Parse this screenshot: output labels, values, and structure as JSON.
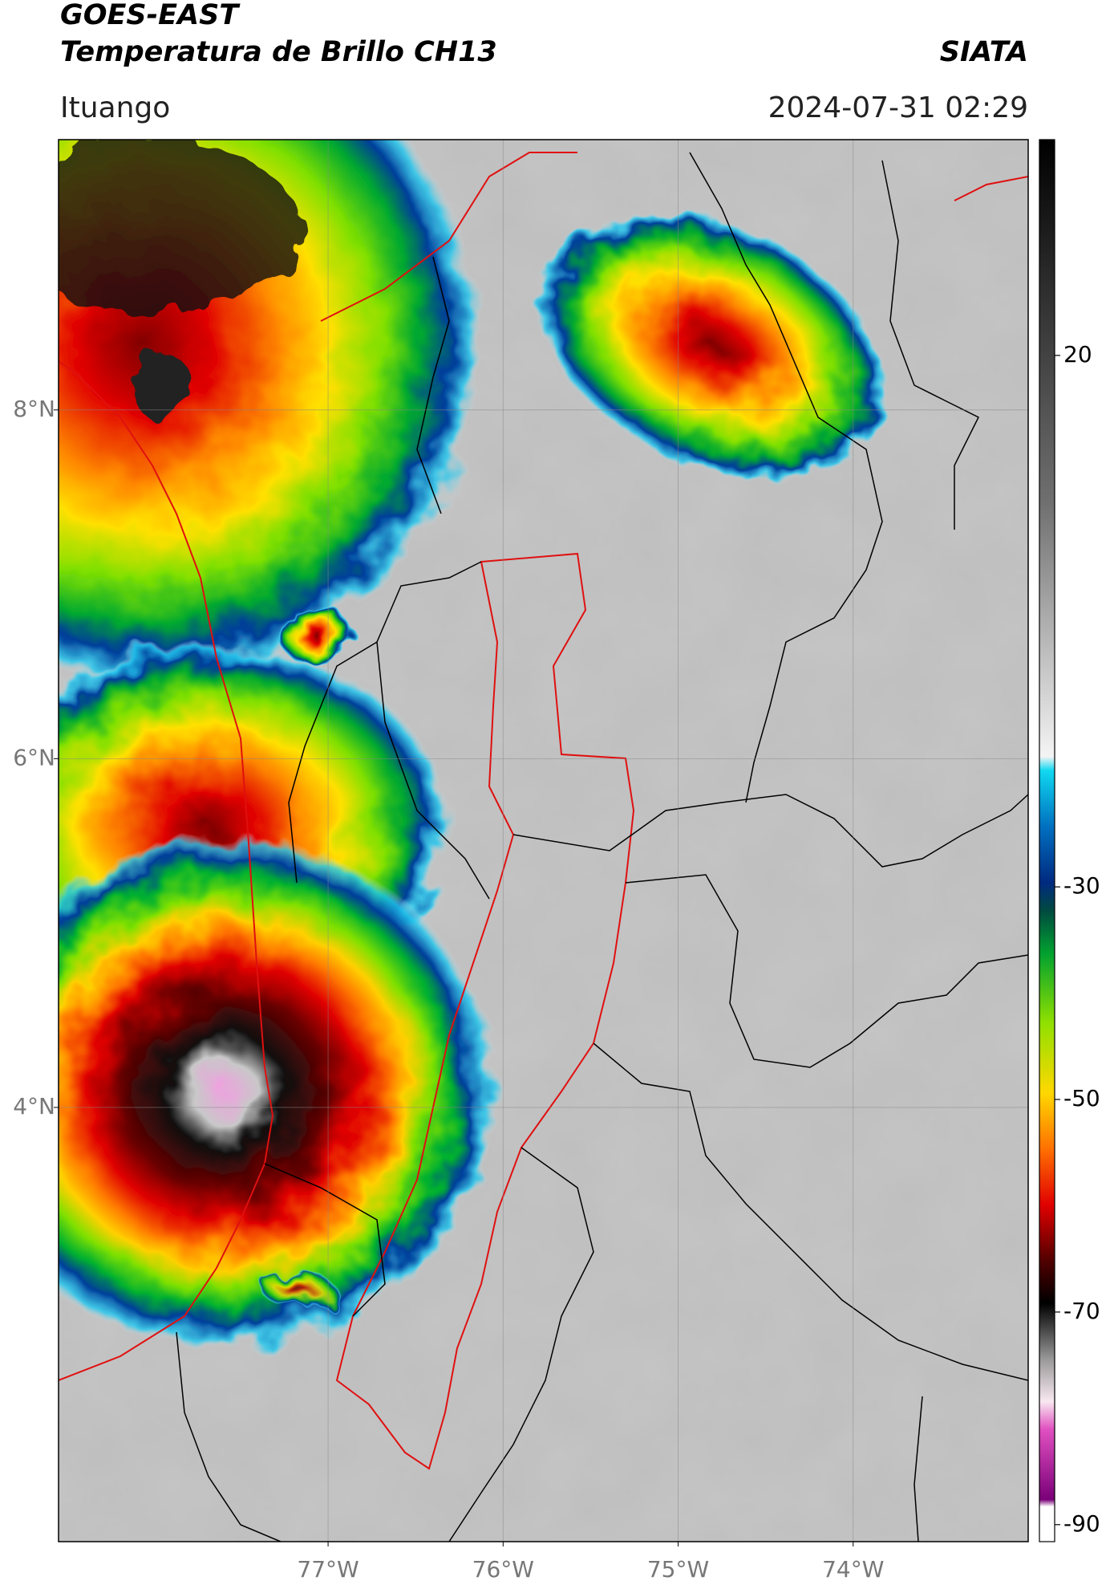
{
  "header": {
    "title": "GOES-EAST",
    "subtitle": "Temperatura de Brillo CH13",
    "org": "SIATA",
    "location": "Ituango",
    "datetime": "2024-07-31 02:29"
  },
  "map": {
    "xlim": [
      -78.54,
      -73.0
    ],
    "ylim": [
      1.51,
      9.55
    ],
    "xticks": [
      {
        "value": -77,
        "label": "77°W"
      },
      {
        "value": -76,
        "label": "76°W"
      },
      {
        "value": -75,
        "label": "75°W"
      },
      {
        "value": -74,
        "label": "74°W"
      }
    ],
    "yticks": [
      {
        "value": 4,
        "label": "4°N"
      },
      {
        "value": 6,
        "label": "6°N"
      },
      {
        "value": 8,
        "label": "8°N"
      }
    ]
  },
  "colorbar": {
    "clim": [
      -91.6,
      40.3
    ],
    "ticks": [
      20,
      -30,
      -50,
      -70,
      -90
    ]
  }
}
